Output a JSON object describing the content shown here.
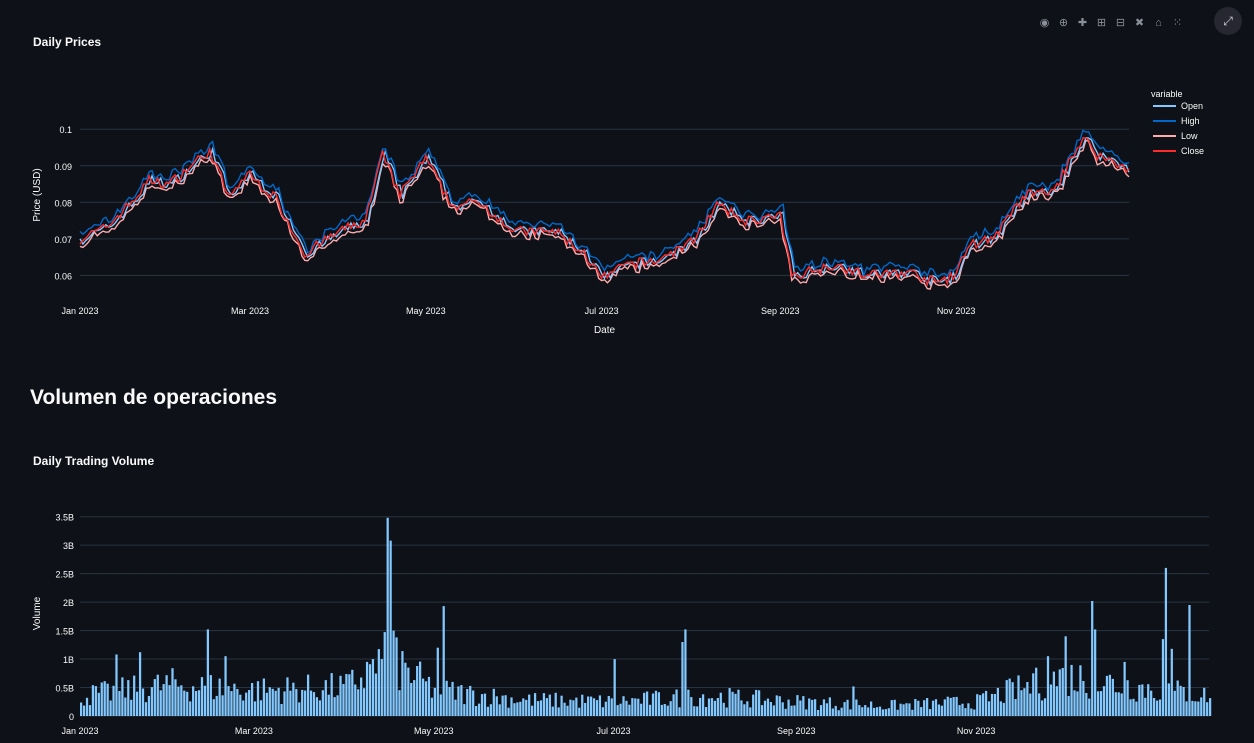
{
  "toolbar": {
    "icons": [
      "camera-icon",
      "zoom-icon",
      "pan-icon",
      "zoom-in-icon",
      "zoom-out-icon",
      "autoscale-icon",
      "home-icon",
      "plotly-logo-icon"
    ]
  },
  "section_heading": "Volumen de operaciones",
  "colors": {
    "background": "#0e1117",
    "grid": "#283442",
    "open": "#83c9ff",
    "high": "#0068c9",
    "low": "#ffabab",
    "close": "#ff2b2b",
    "volume_bar": "#83c9ff"
  },
  "chart_data": [
    {
      "type": "line",
      "title": "Daily Prices",
      "xlabel": "Date",
      "ylabel": "Price (USD)",
      "legend_title": "variable",
      "legend_position": "right",
      "x_range": [
        "2023-01-01",
        "2023-12-31"
      ],
      "x_ticks": [
        "Jan 2023",
        "Mar 2023",
        "May 2023",
        "Jul 2023",
        "Sep 2023",
        "Nov 2023"
      ],
      "ylim": [
        0.056,
        0.108
      ],
      "y_ticks": [
        "0.06",
        "0.07",
        "0.08",
        "0.09",
        "0.1"
      ],
      "y_tick_values": [
        0.06,
        0.07,
        0.08,
        0.09,
        0.1
      ],
      "series_names": [
        "Open",
        "High",
        "Low",
        "Close"
      ],
      "close_anchors": [
        [
          "2023-01-01",
          0.07
        ],
        [
          "2023-01-10",
          0.073
        ],
        [
          "2023-01-20",
          0.081
        ],
        [
          "2023-01-25",
          0.086
        ],
        [
          "2023-02-01",
          0.085
        ],
        [
          "2023-02-10",
          0.091
        ],
        [
          "2023-02-15",
          0.094
        ],
        [
          "2023-02-22",
          0.081
        ],
        [
          "2023-02-28",
          0.088
        ],
        [
          "2023-03-10",
          0.081
        ],
        [
          "2023-03-20",
          0.066
        ],
        [
          "2023-04-01",
          0.072
        ],
        [
          "2023-04-10",
          0.075
        ],
        [
          "2023-04-16",
          0.093
        ],
        [
          "2023-04-22",
          0.082
        ],
        [
          "2023-05-01",
          0.092
        ],
        [
          "2023-05-10",
          0.079
        ],
        [
          "2023-05-20",
          0.08
        ],
        [
          "2023-06-01",
          0.072
        ],
        [
          "2023-06-15",
          0.072
        ],
        [
          "2023-06-25",
          0.066
        ],
        [
          "2023-07-01",
          0.059
        ],
        [
          "2023-07-10",
          0.063
        ],
        [
          "2023-07-20",
          0.064
        ],
        [
          "2023-08-01",
          0.069
        ],
        [
          "2023-08-10",
          0.079
        ],
        [
          "2023-08-20",
          0.075
        ],
        [
          "2023-09-01",
          0.076
        ],
        [
          "2023-09-05",
          0.06
        ],
        [
          "2023-09-20",
          0.063
        ],
        [
          "2023-10-01",
          0.06
        ],
        [
          "2023-10-15",
          0.061
        ],
        [
          "2023-10-25",
          0.058
        ],
        [
          "2023-11-01",
          0.06
        ],
        [
          "2023-11-05",
          0.068
        ],
        [
          "2023-11-15",
          0.071
        ],
        [
          "2023-11-25",
          0.082
        ],
        [
          "2023-12-05",
          0.083
        ],
        [
          "2023-12-15",
          0.098
        ],
        [
          "2023-12-20",
          0.093
        ],
        [
          "2023-12-31",
          0.089
        ]
      ]
    },
    {
      "type": "bar",
      "title": "Daily Trading Volume",
      "xlabel": "",
      "ylabel": "Volume",
      "x_range": [
        "2023-01-01",
        "2024-01-19"
      ],
      "x_ticks": [
        "Jan 2023",
        "Mar 2023",
        "May 2023",
        "Jul 2023",
        "Sep 2023",
        "Nov 2023"
      ],
      "ylim": [
        0,
        3.6
      ],
      "y_unit": "billions",
      "y_ticks": [
        "0",
        "0.5B",
        "1B",
        "1.5B",
        "2B",
        "2.5B",
        "3B",
        "3.5B"
      ],
      "y_tick_values": [
        0,
        0.5,
        1,
        1.5,
        2,
        2.5,
        3,
        3.5
      ],
      "base_anchors": [
        [
          "2023-01-01",
          0.35
        ],
        [
          "2023-02-01",
          0.55
        ],
        [
          "2023-03-01",
          0.45
        ],
        [
          "2023-04-01",
          0.5
        ],
        [
          "2023-04-15",
          1.0
        ],
        [
          "2023-05-01",
          0.45
        ],
        [
          "2023-06-01",
          0.28
        ],
        [
          "2023-07-01",
          0.25
        ],
        [
          "2023-08-01",
          0.35
        ],
        [
          "2023-09-01",
          0.25
        ],
        [
          "2023-10-01",
          0.18
        ],
        [
          "2023-11-01",
          0.25
        ],
        [
          "2023-11-10",
          0.4
        ],
        [
          "2023-12-01",
          0.7
        ],
        [
          "2023-12-20",
          0.55
        ],
        [
          "2024-01-19",
          0.35
        ]
      ],
      "spikes": [
        [
          "2023-02-13",
          1.52
        ],
        [
          "2023-02-19",
          1.05
        ],
        [
          "2023-01-13",
          1.08
        ],
        [
          "2023-01-21",
          1.12
        ],
        [
          "2023-04-15",
          3.48
        ],
        [
          "2023-04-16",
          3.08
        ],
        [
          "2023-04-17",
          1.5
        ],
        [
          "2023-04-18",
          1.38
        ],
        [
          "2023-05-02",
          1.2
        ],
        [
          "2023-05-04",
          1.93
        ],
        [
          "2023-04-10",
          1.0
        ],
        [
          "2023-07-01",
          1.0
        ],
        [
          "2023-07-25",
          1.52
        ],
        [
          "2023-07-24",
          1.3
        ],
        [
          "2023-12-10",
          2.02
        ],
        [
          "2023-12-11",
          1.52
        ],
        [
          "2023-12-01",
          1.4
        ],
        [
          "2023-12-21",
          0.95
        ],
        [
          "2024-01-04",
          2.6
        ],
        [
          "2024-01-03",
          1.35
        ],
        [
          "2024-01-12",
          1.95
        ],
        [
          "2024-01-06",
          1.18
        ],
        [
          "2023-11-20",
          0.75
        ],
        [
          "2023-11-25",
          1.05
        ],
        [
          "2023-09-20",
          0.52
        ]
      ]
    }
  ]
}
